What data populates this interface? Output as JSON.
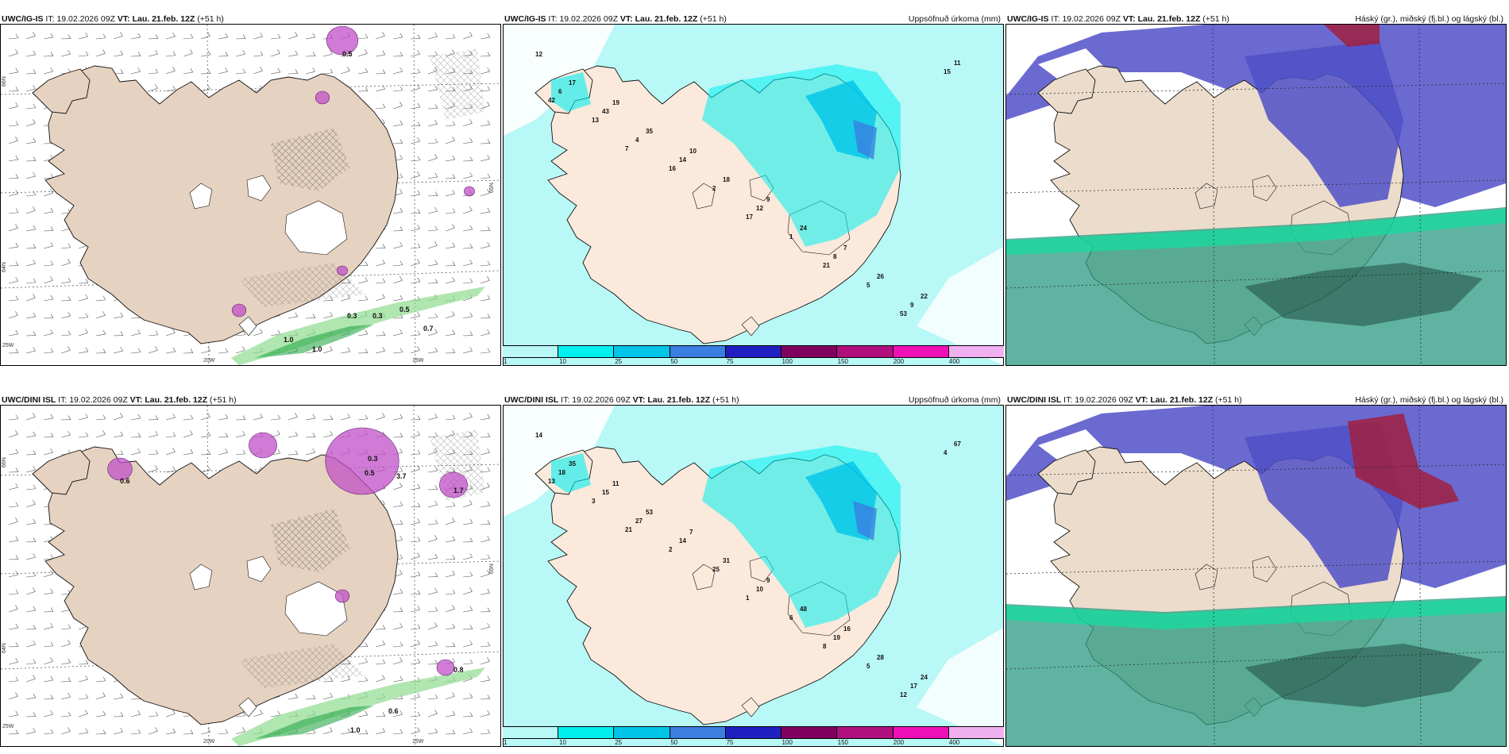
{
  "panels": [
    {
      "model": "UWC/IG-IS",
      "it_label": "IT:",
      "it": "19.02.2026 09Z",
      "vt_label": "VT:",
      "vt": "Lau. 21.feb. 12Z",
      "lead": "(+51 h)",
      "right_title": "",
      "type": "wind",
      "lon_labels": [
        "20W",
        "15W",
        "25W"
      ],
      "lat_labels": [
        "66N",
        "64N",
        "65N"
      ],
      "values": [
        "1.0",
        "1.0",
        "0.7",
        "0.3",
        "0.3",
        "0.5",
        "0.5"
      ]
    },
    {
      "model": "UWC/IG-IS",
      "it_label": "IT:",
      "it": "19.02.2026 09Z",
      "vt_label": "VT:",
      "vt": "Lau. 21.feb. 12Z",
      "lead": "(+51 h)",
      "right_title": "Uppsöfnuð úrkoma (mm)",
      "type": "precip",
      "values": [
        "12",
        "19",
        "10",
        "9",
        "7",
        "22",
        "17",
        "35",
        "18",
        "24",
        "26",
        "11",
        "43",
        "14",
        "12",
        "8",
        "9",
        "6",
        "4",
        "2",
        "1",
        "5",
        "15",
        "13",
        "16",
        "17",
        "21",
        "53",
        "42",
        "7"
      ]
    },
    {
      "model": "UWC/IG-IS",
      "it_label": "IT:",
      "it": "19.02.2026 09Z",
      "vt_label": "VT:",
      "vt": "Lau. 21.feb. 12Z",
      "lead": "(+51 h)",
      "right_title": "Háský (gr.), miðský (fj.bl.) og lágský (bl.)",
      "type": "cloud"
    },
    {
      "model": "UWC/DINI ISL",
      "it_label": "IT:",
      "it": "19.02.2026 09Z",
      "vt_label": "VT:",
      "vt": "Lau. 21.feb. 12Z",
      "lead": "(+51 h)",
      "right_title": "",
      "type": "wind",
      "lon_labels": [
        "20W",
        "15W",
        "25W"
      ],
      "lat_labels": [
        "66N",
        "64N",
        "65N"
      ],
      "values": [
        "1.0",
        "0.8",
        "0.6",
        "0.3",
        "0.5",
        "3.7",
        "1.7",
        "0.6"
      ]
    },
    {
      "model": "UWC/DINI ISL",
      "it_label": "IT:",
      "it": "19.02.2026 09Z",
      "vt_label": "VT:",
      "vt": "Lau. 21.feb. 12Z",
      "lead": "(+51 h)",
      "right_title": "Uppsöfnuð úrkoma (mm)",
      "type": "precip",
      "values": [
        "14",
        "11",
        "7",
        "9",
        "16",
        "24",
        "35",
        "53",
        "31",
        "48",
        "28",
        "67",
        "15",
        "14",
        "10",
        "19",
        "17",
        "18",
        "27",
        "25",
        "6",
        "5",
        "4",
        "3",
        "2",
        "1",
        "8",
        "12",
        "13",
        "21"
      ]
    },
    {
      "model": "UWC/DINI ISL",
      "it_label": "IT:",
      "it": "19.02.2026 09Z",
      "vt_label": "VT:",
      "vt": "Lau. 21.feb. 12Z",
      "lead": "(+51 h)",
      "right_title": "Háský (gr.), miðský (fj.bl.) og lágský (bl.)",
      "type": "cloud"
    }
  ],
  "colorbar": {
    "labels": [
      "1",
      "10",
      "25",
      "50",
      "75",
      "100",
      "150",
      "200",
      "400"
    ],
    "colors": [
      "#b8f8f6",
      "#00f0f0",
      "#00c4e8",
      "#3a7ee0",
      "#2020c0",
      "#800060",
      "#b0107e",
      "#f010b8",
      "#f0b0f0"
    ]
  }
}
